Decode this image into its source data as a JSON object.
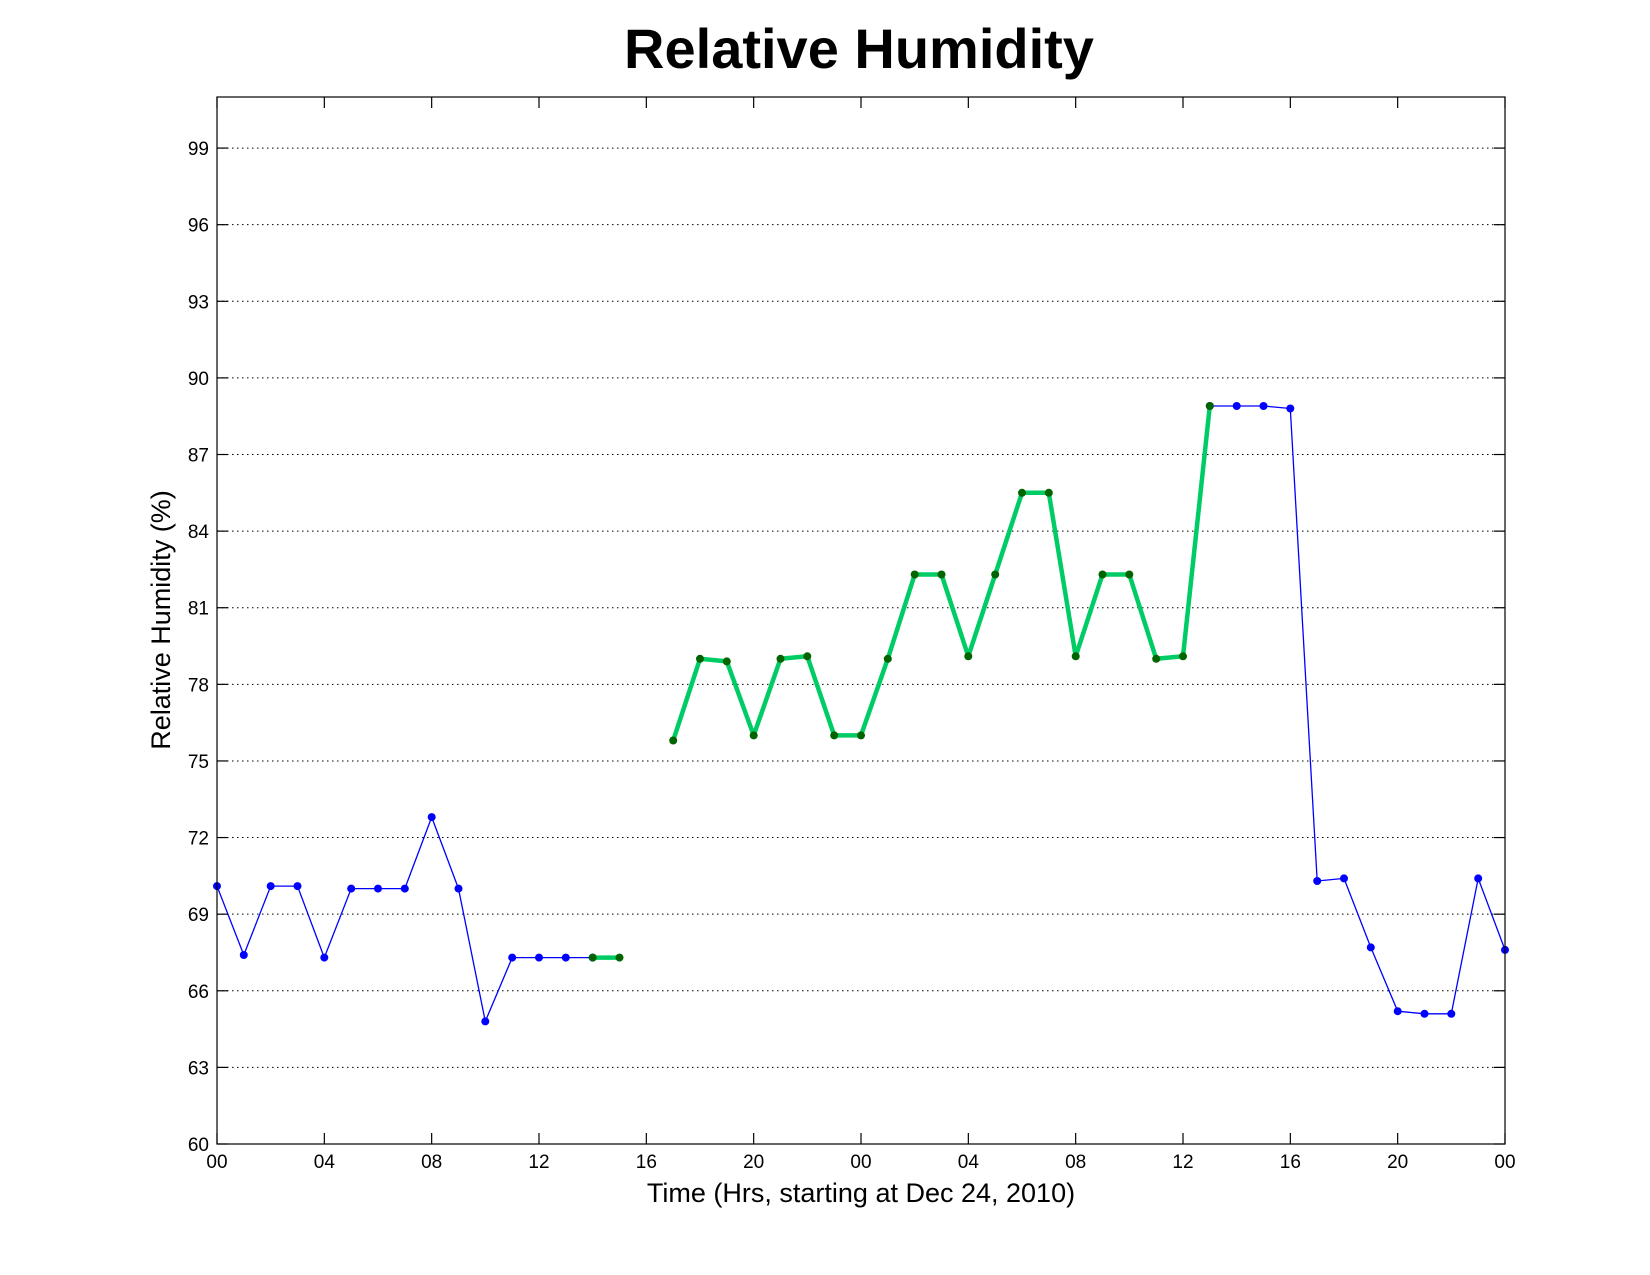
{
  "chart_data": {
    "type": "line",
    "title": "Relative Humidity",
    "xlabel": "Time (Hrs, starting at Dec 24, 2010)",
    "ylabel": "Relative Humidity (%)",
    "x_unit": "hours",
    "xlim": [
      0,
      48
    ],
    "ylim": [
      60,
      101
    ],
    "x_ticks": [
      0,
      4,
      8,
      12,
      16,
      20,
      24,
      28,
      32,
      36,
      40,
      44,
      48
    ],
    "x_tick_labels": [
      "00",
      "04",
      "08",
      "12",
      "16",
      "20",
      "00",
      "04",
      "08",
      "12",
      "16",
      "20",
      "00"
    ],
    "y_ticks": [
      60,
      63,
      66,
      69,
      72,
      75,
      78,
      81,
      84,
      87,
      90,
      93,
      96,
      99
    ],
    "y_tick_labels": [
      "60",
      "63",
      "66",
      "69",
      "72",
      "75",
      "78",
      "81",
      "84",
      "87",
      "90",
      "93",
      "96",
      "99"
    ],
    "grid": "y-dotted",
    "series": [
      {
        "color": "#0000ff",
        "style": "thin-line-with-dot-markers",
        "segments": [
          {
            "x": [
              0,
              1,
              2,
              3,
              4,
              5,
              6,
              7,
              8,
              9,
              10,
              11,
              12,
              13,
              14
            ],
            "y": [
              70.1,
              67.4,
              70.1,
              70.1,
              67.3,
              70.0,
              70.0,
              70.0,
              72.8,
              70.0,
              64.8,
              67.3,
              67.3,
              67.3,
              67.3
            ]
          },
          {
            "x": [
              37,
              38,
              39,
              40,
              41,
              42,
              43,
              44,
              45,
              46,
              47,
              48
            ],
            "y": [
              88.9,
              88.9,
              88.9,
              88.8,
              70.3,
              70.4,
              67.7,
              65.2,
              65.1,
              65.1,
              70.4,
              67.6
            ]
          }
        ]
      },
      {
        "color": "#00cc66",
        "marker_color": "#006400",
        "style": "thick-line-with-dot-markers",
        "segments": [
          {
            "x": [
              14,
              15
            ],
            "y": [
              67.3,
              67.3
            ]
          },
          {
            "x": [
              17,
              18,
              19,
              20,
              21,
              22,
              23,
              24,
              25,
              26,
              27,
              28,
              29,
              30,
              31,
              32,
              33,
              34,
              35,
              36,
              37
            ],
            "y": [
              75.8,
              79.0,
              78.9,
              76.0,
              79.0,
              79.1,
              76.0,
              76.0,
              79.0,
              82.3,
              82.3,
              79.1,
              82.3,
              85.5,
              85.5,
              79.1,
              82.3,
              82.3,
              79.0,
              79.1,
              88.9
            ]
          }
        ]
      }
    ]
  }
}
